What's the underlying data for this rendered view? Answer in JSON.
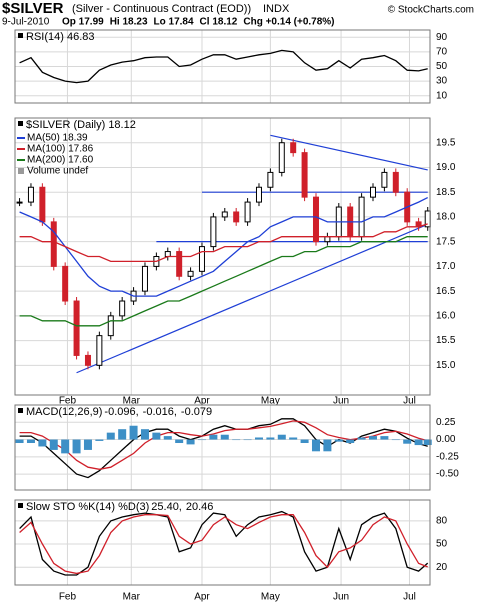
{
  "header": {
    "symbol": "$SILVER",
    "description": "(Silver - Continuous Contract (EOD))",
    "exchange": "INDX",
    "date": "9-Jul-2010",
    "quote": [
      "Op 17.99",
      "Hi 18.23",
      "Lo 17.84",
      "Cl 18.12",
      "Chg +0.14 (+0.78%)"
    ],
    "credit": "© StockCharts.com"
  },
  "chart_data": {
    "type": "line",
    "x": [
      11,
      16,
      21,
      26,
      31,
      36,
      41,
      46,
      51,
      56,
      61,
      66,
      71,
      76,
      81,
      86,
      91,
      96,
      101,
      106,
      111,
      116,
      121,
      126,
      131,
      136,
      141,
      146,
      151,
      156,
      161,
      166,
      171,
      176,
      181,
      186,
      190
    ],
    "xlim": [
      9,
      191
    ],
    "xticks": [
      {
        "value": 32,
        "label": "Feb"
      },
      {
        "value": 60,
        "label": "Mar"
      },
      {
        "value": 91,
        "label": "Apr"
      },
      {
        "value": 121,
        "label": "May"
      },
      {
        "value": 152,
        "label": "Jun"
      },
      {
        "value": 182,
        "label": "Jul"
      }
    ],
    "grid": true,
    "panels": [
      {
        "title": "RSI(14) 46.83",
        "ylim": [
          0,
          100
        ],
        "yticks": [
          10,
          30,
          50,
          70,
          90
        ],
        "series": [
          {
            "style": "line",
            "color": "#000000",
            "values": [
              55,
              62,
              42,
              35,
              30,
              28,
              30,
              45,
              52,
              56,
              58,
              62,
              63,
              63,
              50,
              52,
              60,
              66,
              66,
              60,
              63,
              66,
              68,
              72,
              70,
              55,
              45,
              47,
              58,
              48,
              60,
              62,
              65,
              58,
              45,
              44,
              46.83
            ]
          }
        ]
      },
      {
        "title": "$SILVER (Daily) 18.12",
        "ylim": [
          14.4,
          20.0
        ],
        "yticks": [
          {
            "value": 15,
            "label": "15.0"
          },
          15.5,
          {
            "value": 16,
            "label": "16.0"
          },
          16.5,
          {
            "value": 17,
            "label": "17.0"
          },
          17.5,
          {
            "value": 18,
            "label": "18.0"
          },
          18.5,
          {
            "value": 19,
            "label": "19.0"
          },
          19.5
        ],
        "annotations": [
          "Volume undef"
        ],
        "trendlines": [
          {
            "x": [
              36,
              190
            ],
            "y": [
              14.85,
              17.85
            ]
          },
          {
            "x": [
              121,
              190
            ],
            "y": [
              19.65,
              18.95
            ]
          },
          {
            "x": [
              91,
              190
            ],
            "y": [
              18.5,
              18.5
            ]
          },
          {
            "x": [
              71,
              190
            ],
            "y": [
              17.5,
              17.5
            ]
          }
        ],
        "trendline_color": "#1f3fd6",
        "series": [
          {
            "style": "candle",
            "color": "#000000",
            "down_color": "#d0202a",
            "values": [
              18.3,
              18.6,
              17.9,
              17.0,
              16.3,
              15.2,
              15.0,
              15.6,
              16.0,
              16.3,
              16.5,
              17.0,
              17.2,
              17.3,
              16.8,
              16.9,
              17.4,
              18.0,
              18.1,
              17.9,
              18.3,
              18.6,
              18.9,
              19.5,
              19.3,
              18.4,
              17.5,
              17.6,
              18.2,
              17.6,
              18.4,
              18.6,
              18.9,
              18.5,
              17.9,
              17.8,
              18.12
            ]
          },
          {
            "style": "line",
            "name": "MA(50) 18.39",
            "color": "#1f3fd6",
            "values": [
              18.1,
              18.0,
              17.9,
              17.7,
              17.4,
              17.1,
              16.8,
              16.6,
              16.5,
              16.5,
              16.4,
              16.4,
              16.4,
              16.5,
              16.6,
              16.7,
              16.8,
              16.9,
              17.1,
              17.3,
              17.5,
              17.6,
              17.8,
              17.9,
              18.0,
              18.0,
              18.0,
              17.9,
              17.9,
              17.9,
              17.9,
              18.0,
              18.0,
              18.1,
              18.2,
              18.3,
              18.39
            ]
          },
          {
            "style": "line",
            "name": "MA(100) 17.86",
            "color": "#d0202a",
            "values": [
              17.6,
              17.6,
              17.5,
              17.5,
              17.4,
              17.3,
              17.2,
              17.2,
              17.1,
              17.1,
              17.1,
              17.1,
              17.1,
              17.2,
              17.2,
              17.2,
              17.3,
              17.3,
              17.4,
              17.4,
              17.4,
              17.5,
              17.5,
              17.6,
              17.6,
              17.6,
              17.6,
              17.6,
              17.6,
              17.6,
              17.6,
              17.6,
              17.7,
              17.7,
              17.8,
              17.8,
              17.86
            ]
          },
          {
            "style": "line",
            "name": "MA(200) 17.60",
            "color": "#1a7a1a",
            "values": [
              16.0,
              16.0,
              15.9,
              15.9,
              15.9,
              15.8,
              15.8,
              15.8,
              15.9,
              15.9,
              16.0,
              16.1,
              16.2,
              16.3,
              16.3,
              16.4,
              16.5,
              16.6,
              16.7,
              16.8,
              16.9,
              17.0,
              17.1,
              17.2,
              17.2,
              17.3,
              17.3,
              17.4,
              17.4,
              17.4,
              17.5,
              17.5,
              17.5,
              17.5,
              17.6,
              17.6,
              17.6
            ]
          }
        ]
      },
      {
        "title": "MACD(12,26,9)",
        "ylim": [
          -0.73,
          0.5
        ],
        "yticks": [
          0.25,
          {
            "value": 0,
            "label": "0.00"
          },
          -0.25,
          {
            "value": -0.5,
            "label": "-0.50"
          }
        ],
        "readouts": [
          "-0.096,",
          "-0.016,",
          "-0.079"
        ],
        "series": [
          {
            "style": "line",
            "color": "#000000",
            "values": [
              0.05,
              0.05,
              -0.05,
              -0.2,
              -0.35,
              -0.5,
              -0.55,
              -0.45,
              -0.3,
              -0.15,
              0.0,
              0.1,
              0.15,
              0.15,
              0.05,
              0.0,
              0.05,
              0.15,
              0.2,
              0.15,
              0.15,
              0.2,
              0.22,
              0.3,
              0.3,
              0.2,
              0.0,
              -0.1,
              0.0,
              -0.05,
              0.05,
              0.1,
              0.15,
              0.12,
              0.02,
              -0.06,
              -0.096
            ]
          },
          {
            "style": "line",
            "color": "#d0202a",
            "values": [
              0.1,
              0.1,
              0.05,
              -0.05,
              -0.15,
              -0.3,
              -0.4,
              -0.43,
              -0.4,
              -0.3,
              -0.2,
              -0.05,
              0.05,
              0.1,
              0.1,
              0.07,
              0.05,
              0.08,
              0.13,
              0.15,
              0.15,
              0.17,
              0.19,
              0.23,
              0.27,
              0.25,
              0.17,
              0.07,
              0.03,
              0.0,
              0.02,
              0.05,
              0.1,
              0.12,
              0.08,
              0.02,
              -0.016
            ]
          },
          {
            "style": "bar",
            "color": "#3d8fc6",
            "values": [
              -0.05,
              -0.05,
              -0.1,
              -0.15,
              -0.2,
              -0.2,
              -0.15,
              -0.02,
              0.1,
              0.15,
              0.2,
              0.15,
              0.1,
              0.05,
              -0.05,
              -0.07,
              0,
              0.07,
              0.07,
              0,
              0,
              0.03,
              0.03,
              0.07,
              0.03,
              -0.05,
              -0.17,
              -0.17,
              -0.03,
              -0.05,
              0.03,
              0.05,
              0.05,
              0,
              -0.06,
              -0.08,
              -0.079
            ]
          }
        ]
      },
      {
        "title": "Slow STO %K(14) %D(3)",
        "ylim": [
          -3,
          107
        ],
        "yticks": [
          20,
          50,
          80
        ],
        "readouts": [
          "25.40,",
          "20.46"
        ],
        "series": [
          {
            "style": "line",
            "color": "#000000",
            "values": [
              70,
              85,
              30,
              15,
              10,
              10,
              20,
              60,
              80,
              85,
              88,
              90,
              88,
              85,
              40,
              45,
              75,
              90,
              88,
              60,
              75,
              85,
              88,
              92,
              85,
              40,
              15,
              20,
              70,
              30,
              75,
              85,
              90,
              70,
              20,
              15,
              25.4
            ]
          },
          {
            "style": "line",
            "color": "#d0202a",
            "values": [
              65,
              78,
              50,
              25,
              15,
              12,
              15,
              35,
              65,
              80,
              85,
              88,
              88,
              87,
              60,
              50,
              55,
              75,
              85,
              75,
              70,
              78,
              85,
              88,
              88,
              65,
              35,
              20,
              40,
              45,
              55,
              75,
              85,
              80,
              50,
              25,
              20.46
            ]
          }
        ]
      }
    ]
  }
}
